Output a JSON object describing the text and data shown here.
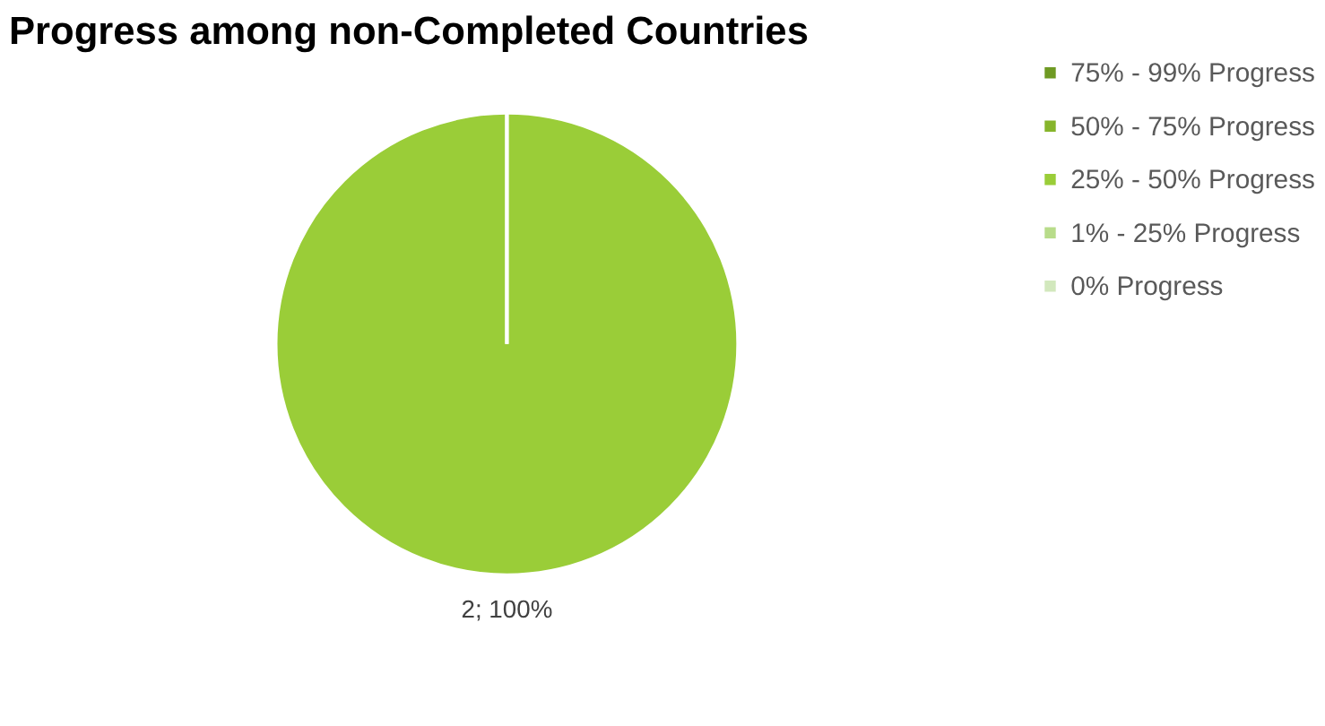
{
  "chart_data": {
    "type": "pie",
    "title": "Progress among non-Completed Countries",
    "categories": [
      "75% - 99% Progress",
      "50% - 75% Progress",
      "25% - 50% Progress",
      "1% - 25% Progress",
      "0% Progress"
    ],
    "values": [
      0,
      0,
      2,
      0,
      0
    ],
    "colors": [
      "#6f9a23",
      "#86b52b",
      "#9acd38",
      "#b8dc8a",
      "#d2e8bd"
    ],
    "value_labels": [
      null,
      null,
      "2; 100%",
      null,
      null
    ],
    "legend": "right"
  }
}
